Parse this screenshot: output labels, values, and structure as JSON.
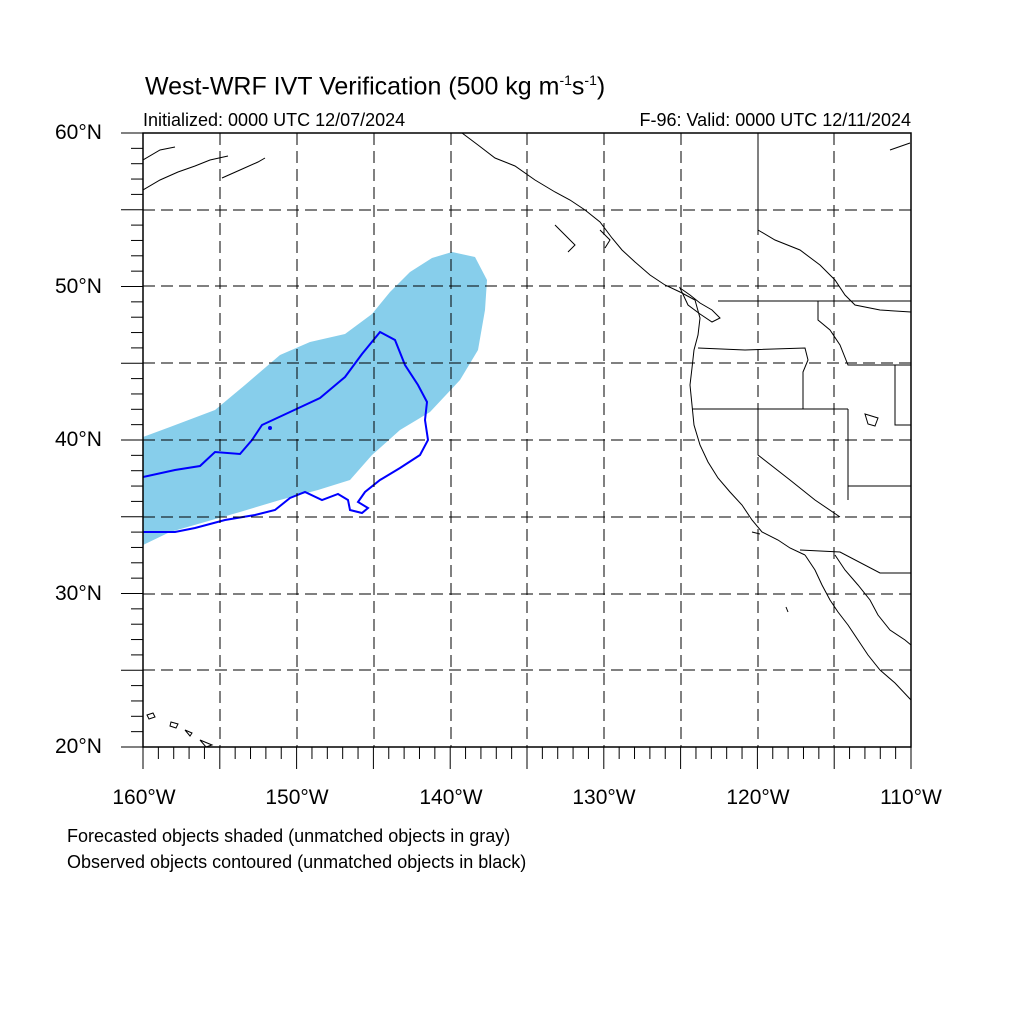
{
  "title": {
    "main": "West-WRF IVT Verification (500 kg m",
    "exp1": "-1",
    "mid": "s",
    "exp2": "-1",
    "close": ")"
  },
  "initialized": "Initialized: 0000 UTC 12/07/2024",
  "valid": "F-96: Valid: 0000 UTC 12/11/2024",
  "lat_labels": [
    "60°N",
    "50°N",
    "40°N",
    "30°N",
    "20°N"
  ],
  "lon_labels": [
    "160°W",
    "150°W",
    "140°W",
    "130°W",
    "120°W",
    "110°W"
  ],
  "notes": [
    "Forecasted objects shaded (unmatched objects in gray)",
    "Observed objects contoured (unmatched objects in black)"
  ],
  "colors": {
    "forecast_fill": "#87ceeb",
    "observed_contour": "#0000ff",
    "coastline": "#000000",
    "grid": "#000000"
  },
  "map": {
    "lon_range": [
      -160,
      -110
    ],
    "lat_range": [
      20,
      60
    ],
    "grid_lon_step": 5,
    "grid_lat_step": 5,
    "grid_style": "dashed"
  }
}
